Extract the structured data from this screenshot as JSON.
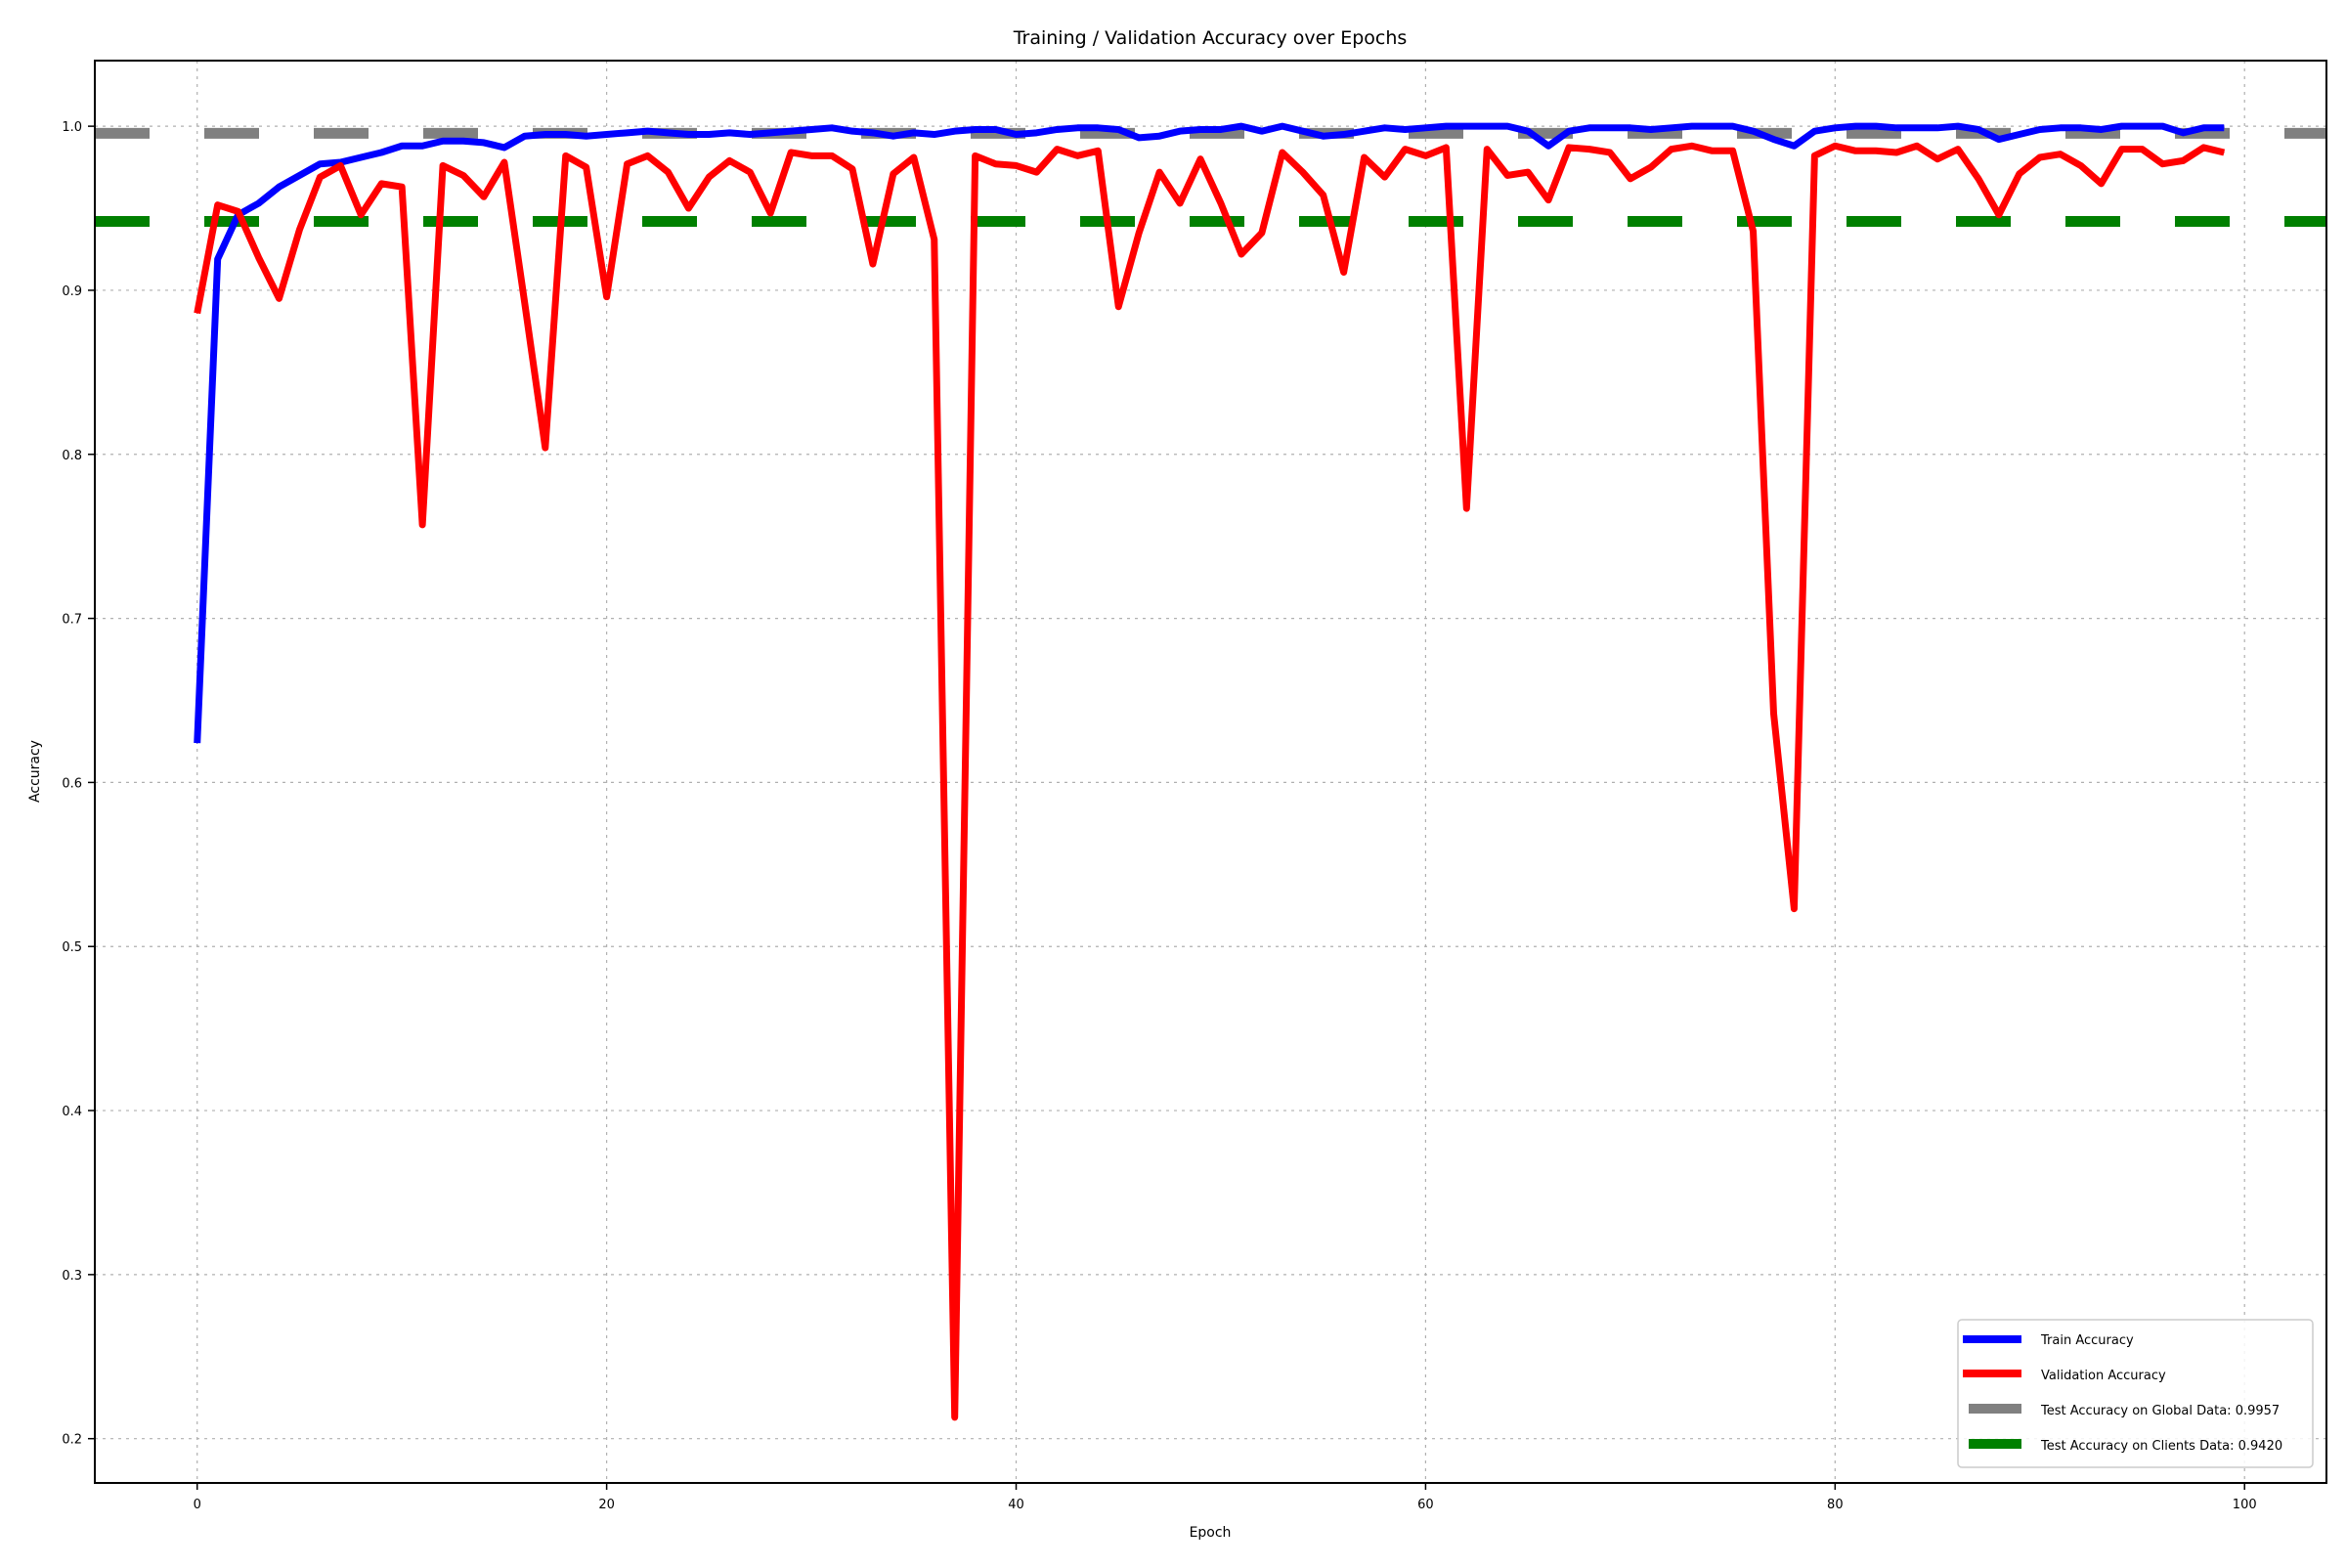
{
  "chart_data": {
    "type": "line",
    "title": "Training / Validation Accuracy over Epochs",
    "xlabel": "Epoch",
    "ylabel": "Accuracy",
    "xlim": [
      -5,
      104
    ],
    "ylim": [
      0.173,
      1.04
    ],
    "xticks": [
      0,
      20,
      40,
      60,
      80,
      100
    ],
    "yticks": [
      0.2,
      0.3,
      0.4,
      0.5,
      0.6,
      0.7,
      0.8,
      0.9,
      1.0
    ],
    "grid": true,
    "legend_position": "lower-right",
    "series": [
      {
        "name": "Train Accuracy",
        "color": "#0000ff",
        "style": "solid",
        "x": [
          0,
          1,
          2,
          3,
          4,
          5,
          6,
          7,
          8,
          9,
          10,
          11,
          12,
          13,
          14,
          15,
          16,
          17,
          18,
          19,
          20,
          21,
          22,
          23,
          24,
          25,
          26,
          27,
          28,
          29,
          30,
          31,
          32,
          33,
          34,
          35,
          36,
          37,
          38,
          39,
          40,
          41,
          42,
          43,
          44,
          45,
          46,
          47,
          48,
          49,
          50,
          51,
          52,
          53,
          54,
          55,
          56,
          57,
          58,
          59,
          60,
          61,
          62,
          63,
          64,
          65,
          66,
          67,
          68,
          69,
          70,
          71,
          72,
          73,
          74,
          75,
          76,
          77,
          78,
          79,
          80,
          81,
          82,
          83,
          84,
          85,
          86,
          87,
          88,
          89,
          90,
          91,
          92,
          93,
          94,
          95,
          96,
          97,
          98,
          99
        ],
        "values": [
          0.624,
          0.919,
          0.946,
          0.953,
          0.963,
          0.97,
          0.977,
          0.978,
          0.981,
          0.984,
          0.988,
          0.988,
          0.991,
          0.991,
          0.99,
          0.987,
          0.994,
          0.995,
          0.995,
          0.994,
          0.995,
          0.996,
          0.997,
          0.996,
          0.995,
          0.995,
          0.996,
          0.995,
          0.996,
          0.997,
          0.998,
          0.999,
          0.997,
          0.996,
          0.994,
          0.996,
          0.995,
          0.997,
          0.998,
          0.998,
          0.995,
          0.996,
          0.998,
          0.999,
          0.999,
          0.998,
          0.993,
          0.994,
          0.997,
          0.998,
          0.998,
          1.0,
          0.997,
          1.0,
          0.997,
          0.994,
          0.995,
          0.997,
          0.999,
          0.998,
          0.999,
          1.0,
          1.0,
          1.0,
          1.0,
          0.997,
          0.988,
          0.997,
          0.999,
          0.999,
          0.999,
          0.998,
          0.999,
          1.0,
          1.0,
          1.0,
          0.997,
          0.992,
          0.988,
          0.997,
          0.999,
          1.0,
          1.0,
          0.999,
          0.999,
          0.999,
          1.0,
          0.998,
          0.992,
          0.995,
          0.998,
          0.999,
          0.999,
          0.998,
          1.0,
          1.0,
          1.0,
          0.996,
          0.999,
          0.999
        ]
      },
      {
        "name": "Validation Accuracy",
        "color": "#ff0000",
        "style": "solid",
        "x": [
          0,
          1,
          2,
          3,
          4,
          5,
          6,
          7,
          8,
          9,
          10,
          11,
          12,
          13,
          14,
          15,
          16,
          17,
          18,
          19,
          20,
          21,
          22,
          23,
          24,
          25,
          26,
          27,
          28,
          29,
          30,
          31,
          32,
          33,
          34,
          35,
          36,
          37,
          38,
          39,
          40,
          41,
          42,
          43,
          44,
          45,
          46,
          47,
          48,
          49,
          50,
          51,
          52,
          53,
          54,
          55,
          56,
          57,
          58,
          59,
          60,
          61,
          62,
          63,
          64,
          65,
          66,
          67,
          68,
          69,
          70,
          71,
          72,
          73,
          74,
          75,
          76,
          77,
          78,
          79,
          80,
          81,
          82,
          83,
          84,
          85,
          86,
          87,
          88,
          89,
          90,
          91,
          92,
          93,
          94,
          95,
          96,
          97,
          98,
          99
        ],
        "values": [
          0.886,
          0.952,
          0.948,
          0.92,
          0.895,
          0.937,
          0.969,
          0.976,
          0.946,
          0.965,
          0.963,
          0.757,
          0.976,
          0.97,
          0.957,
          0.978,
          0.892,
          0.804,
          0.982,
          0.975,
          0.896,
          0.977,
          0.982,
          0.972,
          0.95,
          0.969,
          0.979,
          0.972,
          0.947,
          0.984,
          0.982,
          0.982,
          0.974,
          0.916,
          0.971,
          0.981,
          0.931,
          0.213,
          0.982,
          0.977,
          0.976,
          0.972,
          0.986,
          0.982,
          0.985,
          0.89,
          0.935,
          0.972,
          0.953,
          0.98,
          0.953,
          0.922,
          0.935,
          0.984,
          0.972,
          0.958,
          0.911,
          0.981,
          0.969,
          0.986,
          0.982,
          0.987,
          0.767,
          0.986,
          0.97,
          0.972,
          0.955,
          0.987,
          0.986,
          0.984,
          0.968,
          0.975,
          0.986,
          0.988,
          0.985,
          0.985,
          0.936,
          0.642,
          0.523,
          0.982,
          0.988,
          0.985,
          0.985,
          0.984,
          0.988,
          0.98,
          0.986,
          0.968,
          0.946,
          0.971,
          0.981,
          0.983,
          0.976,
          0.965,
          0.986,
          0.986,
          0.977,
          0.979,
          0.987,
          0.984
        ]
      }
    ],
    "hlines": [
      {
        "name": "Test Accuracy on Global Data: 0.9957",
        "value": 0.9957,
        "color": "#808080",
        "style": "dashed"
      },
      {
        "name": "Test Accuracy on Clients Data: 0.9420",
        "value": 0.942,
        "color": "#008000",
        "style": "dashed"
      }
    ]
  }
}
